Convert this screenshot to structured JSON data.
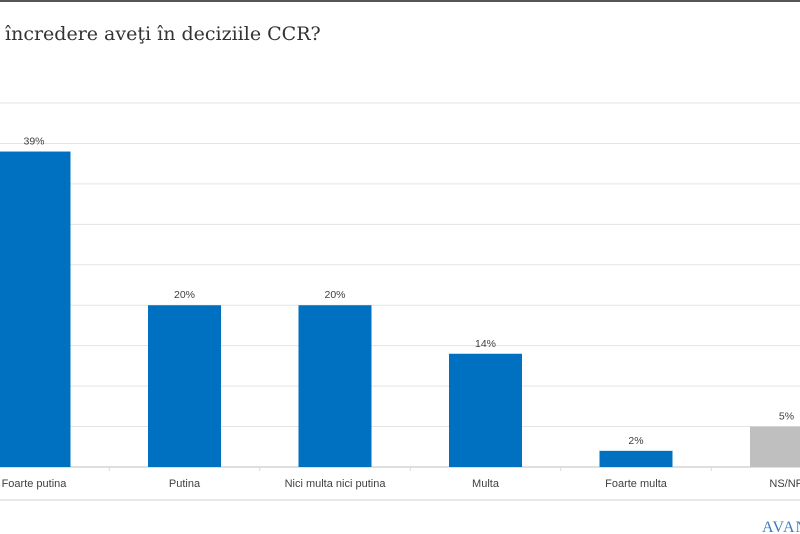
{
  "title": "încredere aveţi în deciziile CCR?",
  "logo_text": "AVAN",
  "chart_data": {
    "type": "bar",
    "title": "încredere aveţi în deciziile CCR?",
    "categories": [
      "Foarte putina",
      "Putina",
      "Nici multa nici putina",
      "Multa",
      "Foarte multa",
      "NS/NR"
    ],
    "values": [
      39,
      20,
      20,
      14,
      2,
      5
    ],
    "data_labels": [
      "39%",
      "20%",
      "20%",
      "14%",
      "2%",
      "5%"
    ],
    "colors": [
      "#0070c0",
      "#0070c0",
      "#0070c0",
      "#0070c0",
      "#0070c0",
      "#bfbfbf"
    ],
    "ylim": [
      0,
      45
    ],
    "grid": true,
    "legend": "none"
  }
}
